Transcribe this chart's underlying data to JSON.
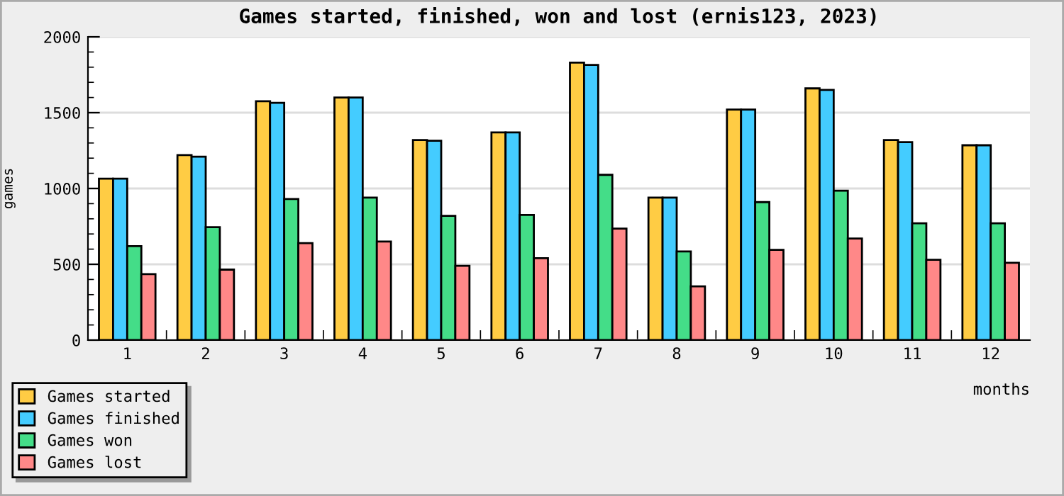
{
  "chart_data": {
    "type": "bar",
    "title": "Games started, finished, won and lost (ernis123, 2023)",
    "xlabel": "months",
    "ylabel": "games",
    "categories": [
      "1",
      "2",
      "3",
      "4",
      "5",
      "6",
      "7",
      "8",
      "9",
      "10",
      "11",
      "12"
    ],
    "series": [
      {
        "name": "Games started",
        "color": "#ffcc44",
        "values": [
          1065,
          1220,
          1575,
          1600,
          1320,
          1370,
          1830,
          940,
          1520,
          1660,
          1320,
          1285
        ]
      },
      {
        "name": "Games finished",
        "color": "#44ccff",
        "values": [
          1065,
          1210,
          1565,
          1600,
          1315,
          1370,
          1815,
          940,
          1520,
          1650,
          1305,
          1285
        ]
      },
      {
        "name": "Games won",
        "color": "#44dd88",
        "values": [
          620,
          745,
          930,
          940,
          820,
          825,
          1090,
          585,
          910,
          985,
          770,
          770
        ]
      },
      {
        "name": "Games lost",
        "color": "#ff8888",
        "values": [
          435,
          465,
          640,
          650,
          490,
          540,
          735,
          355,
          595,
          670,
          530,
          510
        ]
      }
    ],
    "ylim": [
      0,
      2000
    ],
    "yticks": [
      0,
      500,
      1000,
      1500,
      2000
    ],
    "grid": "y",
    "legend": "bottom left"
  }
}
